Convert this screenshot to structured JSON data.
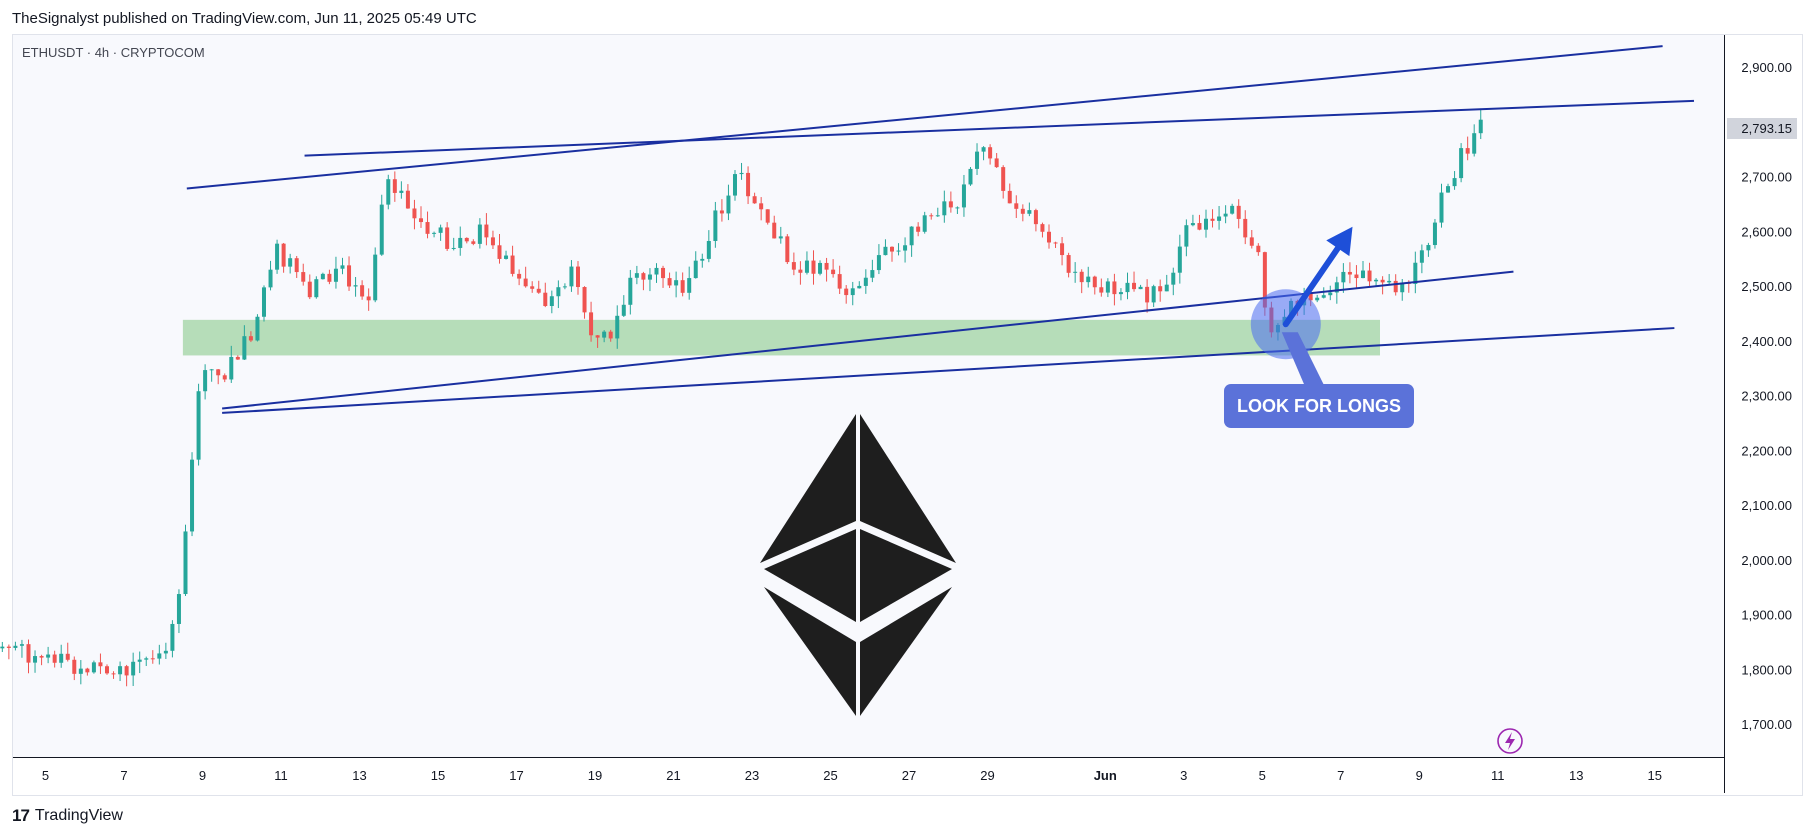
{
  "header": {
    "publisher_line": "TheSignalyst published on TradingView.com, Jun 11, 2025 05:49 UTC"
  },
  "symbol_line": "ETHUSDT · 4h · CRYPTOCOM",
  "footer": {
    "logo_glyph": "17",
    "brand": "TradingView"
  },
  "annotation": {
    "label": "LOOK FOR LONGS"
  },
  "colors": {
    "up": "#26a69a",
    "down": "#ef5350",
    "trendline": "#1a2fa0",
    "zone": "#a5d6a7",
    "label_bg": "#5b72d9",
    "arrow": "#1e4fd8"
  },
  "icons": [
    "ethereum-logo-icon",
    "lightning-icon",
    "tradingview-logo-icon"
  ],
  "chart_data": {
    "type": "candlestick",
    "symbol": "ETHUSDT",
    "interval": "4h",
    "exchange": "CRYPTOCOM",
    "last_price": "2,793.15",
    "y_ticks": [
      "2,900.00",
      "2,800.00",
      "2,700.00",
      "2,600.00",
      "2,500.00",
      "2,400.00",
      "2,300.00",
      "2,200.00",
      "2,100.00",
      "2,000.00",
      "1,900.00",
      "1,800.00",
      "1,700.00"
    ],
    "y_range": [
      1660,
      2960
    ],
    "x_ticks": [
      "5",
      "7",
      "9",
      "11",
      "13",
      "15",
      "17",
      "19",
      "21",
      "23",
      "25",
      "27",
      "29",
      "Jun",
      "3",
      "5",
      "7",
      "9",
      "11",
      "13",
      "15"
    ],
    "x_tick_days": [
      5,
      7,
      9,
      11,
      13,
      15,
      17,
      19,
      21,
      23,
      25,
      27,
      29,
      32,
      34,
      36,
      38,
      40,
      42,
      44,
      46
    ],
    "day_unit_note": "day index counts from May (May 5 = 5, June 1 = 32)",
    "anchors": [
      [
        3.9,
        1840
      ],
      [
        5.5,
        1815
      ],
      [
        6.5,
        1795
      ],
      [
        7.3,
        1800
      ],
      [
        8.0,
        1830
      ],
      [
        8.4,
        1940
      ],
      [
        8.7,
        2150
      ],
      [
        9.0,
        2370
      ],
      [
        9.5,
        2330
      ],
      [
        10.3,
        2420
      ],
      [
        10.9,
        2570
      ],
      [
        11.7,
        2490
      ],
      [
        12.5,
        2540
      ],
      [
        13.2,
        2470
      ],
      [
        13.7,
        2700
      ],
      [
        14.3,
        2640
      ],
      [
        15.3,
        2580
      ],
      [
        16.1,
        2600
      ],
      [
        16.9,
        2540
      ],
      [
        17.6,
        2470
      ],
      [
        18.4,
        2530
      ],
      [
        18.9,
        2410
      ],
      [
        19.3,
        2400
      ],
      [
        19.9,
        2510
      ],
      [
        20.7,
        2520
      ],
      [
        21.3,
        2480
      ],
      [
        22.0,
        2620
      ],
      [
        22.7,
        2710
      ],
      [
        23.4,
        2610
      ],
      [
        24.1,
        2540
      ],
      [
        24.8,
        2530
      ],
      [
        25.5,
        2490
      ],
      [
        26.2,
        2560
      ],
      [
        26.9,
        2580
      ],
      [
        27.5,
        2640
      ],
      [
        28.2,
        2650
      ],
      [
        28.8,
        2760
      ],
      [
        29.4,
        2680
      ],
      [
        30.2,
        2620
      ],
      [
        30.9,
        2550
      ],
      [
        31.6,
        2510
      ],
      [
        32.4,
        2500
      ],
      [
        33.0,
        2480
      ],
      [
        33.6,
        2500
      ],
      [
        34.1,
        2610
      ],
      [
        34.6,
        2620
      ],
      [
        35.1,
        2650
      ],
      [
        35.6,
        2600
      ],
      [
        35.9,
        2580
      ],
      [
        36.1,
        2450
      ],
      [
        36.3,
        2420
      ],
      [
        36.7,
        2470
      ],
      [
        37.3,
        2490
      ],
      [
        37.9,
        2510
      ],
      [
        38.6,
        2520
      ],
      [
        39.2,
        2510
      ],
      [
        39.6,
        2490
      ],
      [
        40.1,
        2560
      ],
      [
        40.5,
        2650
      ],
      [
        41.0,
        2730
      ],
      [
        41.5,
        2790
      ],
      [
        41.7,
        2793
      ]
    ],
    "trendlines": [
      {
        "from": [
          8.6,
          2680
        ],
        "to": [
          46.2,
          2940
        ]
      },
      {
        "from": [
          11.6,
          2740
        ],
        "to": [
          47.0,
          2840
        ]
      },
      {
        "from": [
          9.5,
          2278
        ],
        "to": [
          42.4,
          2528
        ]
      },
      {
        "from": [
          9.5,
          2270
        ],
        "to": [
          46.5,
          2425
        ]
      }
    ],
    "zones": [
      {
        "x_from": 8.5,
        "x_to": 39.0,
        "y_from": 2375,
        "y_to": 2440
      }
    ],
    "markers": [
      {
        "type": "circle",
        "x": 36.6,
        "y": 2432
      },
      {
        "type": "arrow",
        "from": [
          36.6,
          2432
        ],
        "to": [
          38.3,
          2610
        ]
      },
      {
        "type": "callout",
        "x": 37.3,
        "y": 2305
      }
    ]
  }
}
